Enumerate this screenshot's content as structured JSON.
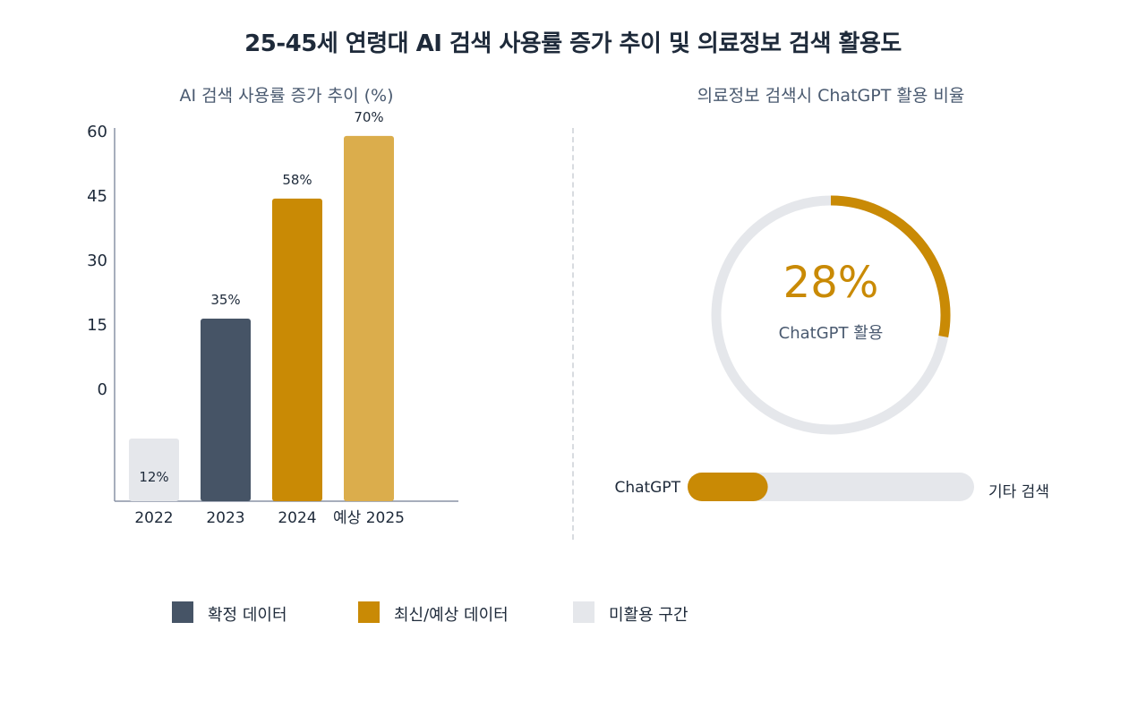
{
  "title": "25-45세 연령대 AI 검색 사용률 증가 추이 및 의료정보 검색 활용도",
  "left_panel": {
    "title": "AI 검색 사용률 증가 추이 (%)"
  },
  "right_panel": {
    "title": "의료정보 검색시 ChatGPT 활용 비율",
    "donut_value_label": "28%",
    "donut_caption": "ChatGPT 활용",
    "bar_left_label": "ChatGPT",
    "bar_right_label": "기타 검색"
  },
  "legend": [
    {
      "label": "확정 데이터",
      "color": "#465466"
    },
    {
      "label": "최신/예상 데이터",
      "color": "#c98a05"
    },
    {
      "label": "미활용 구간",
      "color": "#e5e7eb"
    }
  ],
  "colors": {
    "confirmed": "#465466",
    "recent": "#c98a05",
    "forecast": "#dbad4c",
    "unused": "#e5e7eb",
    "axis": "#8a94a6"
  },
  "chart_data": [
    {
      "type": "bar",
      "title": "AI 검색 사용률 증가 추이 (%)",
      "categories": [
        "2022",
        "2023",
        "2024",
        "예상 2025"
      ],
      "values": [
        12,
        35,
        58,
        70
      ],
      "value_labels": [
        "12%",
        "35%",
        "58%",
        "70%"
      ],
      "bar_kinds": [
        "unused",
        "confirmed",
        "recent",
        "forecast"
      ],
      "yticks": [
        "60",
        "45",
        "30",
        "15",
        "0"
      ],
      "grid": false
    },
    {
      "type": "pie",
      "title": "의료정보 검색시 ChatGPT 활용 비율",
      "categories": [
        "ChatGPT",
        "기타 검색"
      ],
      "values": [
        28,
        72
      ]
    }
  ]
}
